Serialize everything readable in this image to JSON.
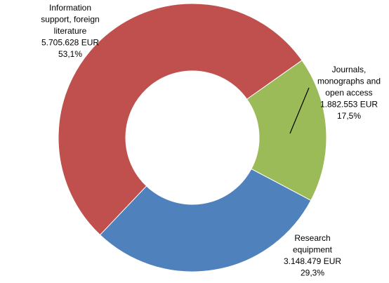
{
  "chart_data": {
    "type": "donut",
    "categories": [
      [
        "Information",
        "support, foreign",
        "literature"
      ],
      [
        "Journals,",
        "monographs and",
        "open access"
      ],
      [
        "Research",
        "equipment"
      ]
    ],
    "values": [
      5705628,
      1882553,
      3148479
    ],
    "value_labels": [
      "5.705.628 EUR",
      "1.882.553 EUR",
      "3.148.479 EUR"
    ],
    "percentages": [
      53.1,
      17.5,
      29.3
    ],
    "percentage_labels": [
      "53,1%",
      "17,5%",
      "29,3%"
    ],
    "colors": [
      "#c0504d",
      "#9bbb59",
      "#4f81bd"
    ]
  }
}
